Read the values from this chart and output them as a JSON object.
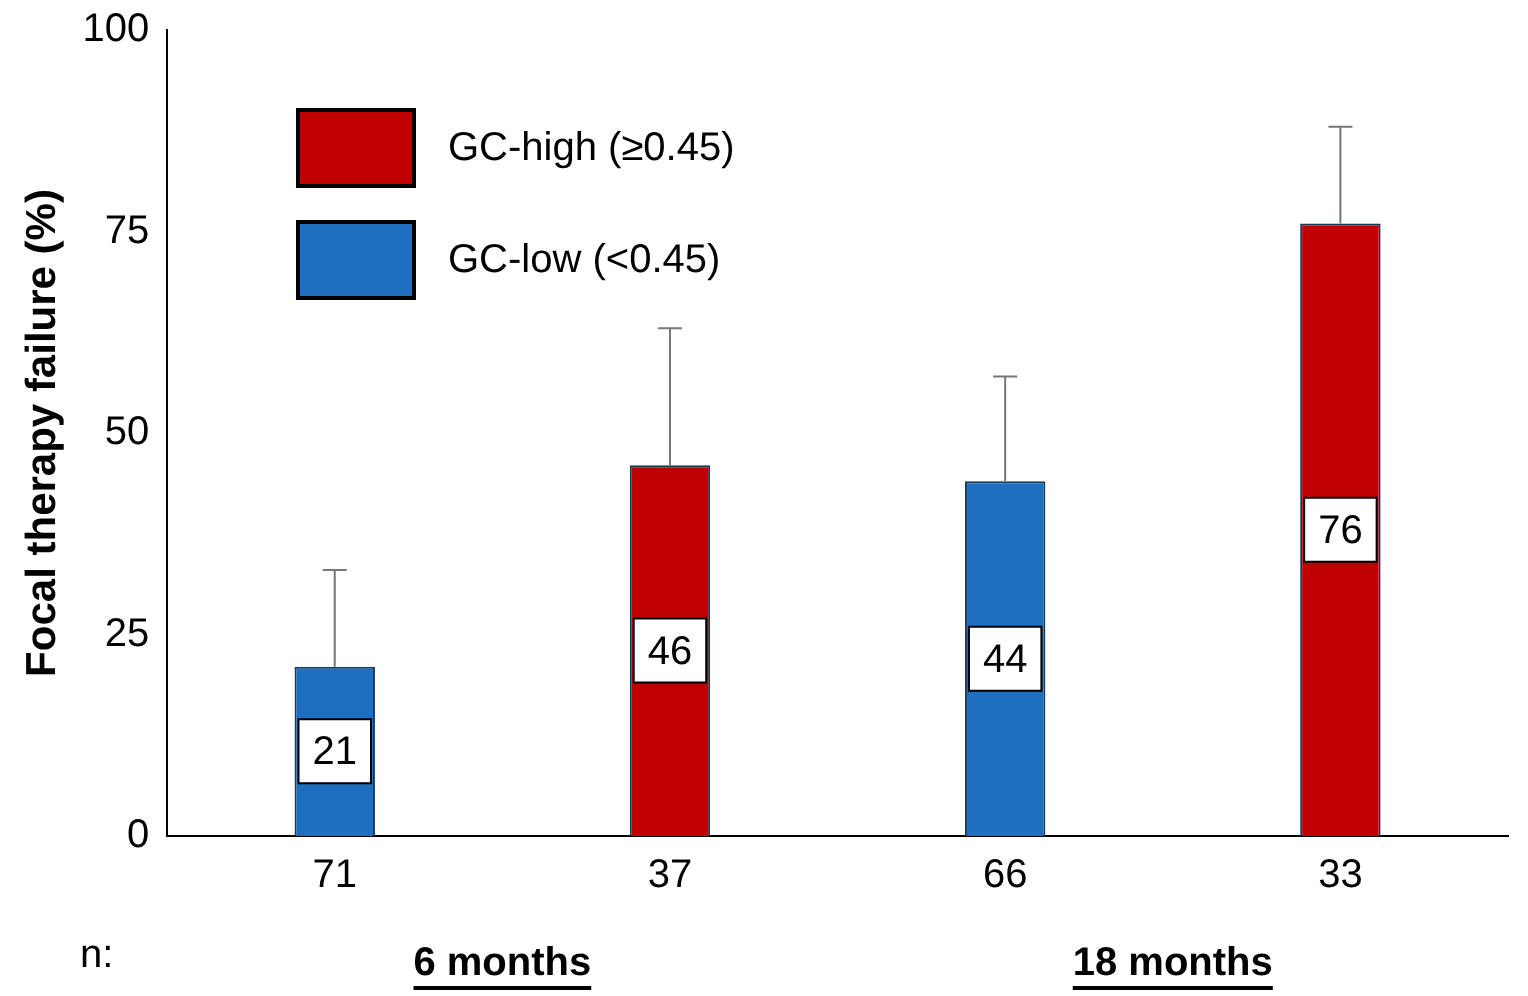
{
  "chart_data": {
    "type": "bar",
    "ylabel": "Focal therapy failure (%)",
    "categories": [
      "71",
      "37",
      "66",
      "33"
    ],
    "series": [
      {
        "name": "GC-high (≥0.45)",
        "color": "#c00000",
        "values": [
          null,
          46,
          null,
          76
        ],
        "errors": [
          null,
          [
            46,
            63
          ],
          null,
          [
            76,
            88
          ]
        ]
      },
      {
        "name": "GC-low (<0.45)",
        "color": "#1f6fc0",
        "values": [
          21,
          null,
          44,
          null
        ],
        "errors": [
          [
            21,
            33
          ],
          null,
          [
            44,
            57
          ],
          null
        ]
      }
    ],
    "ylim": [
      0,
      100
    ],
    "yticks": [
      0,
      25,
      50,
      75,
      100
    ],
    "grid": false,
    "legend": "top left",
    "data_labels": true,
    "annotations": [
      "n:",
      "6 months",
      "18 months"
    ]
  }
}
